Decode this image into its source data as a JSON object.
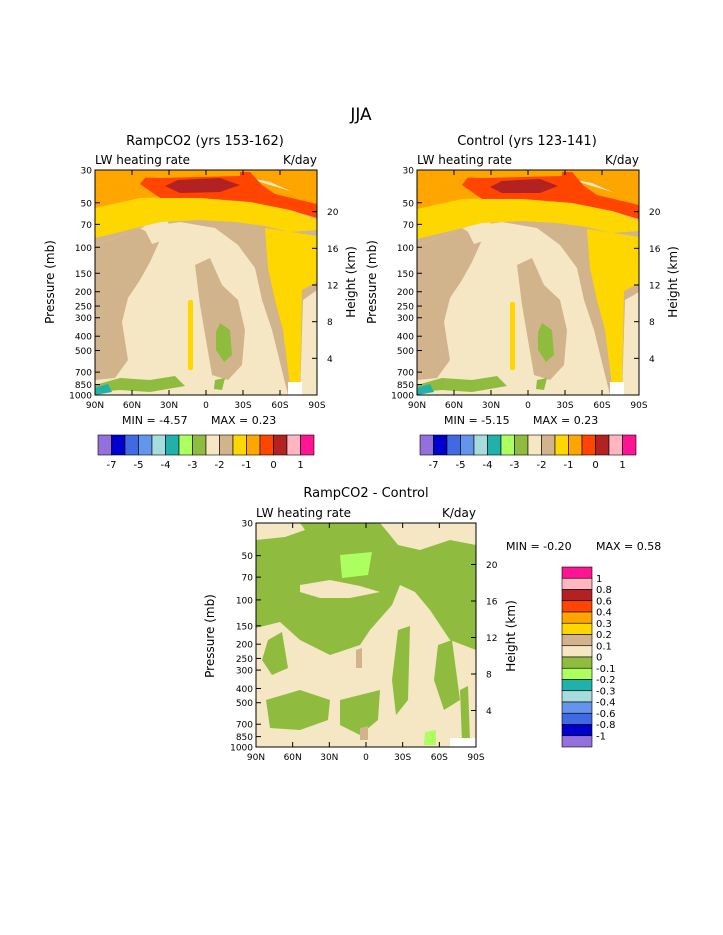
{
  "page_title": "JJA",
  "colors": {
    "top_scale": [
      "#9370DB",
      "#0000CD",
      "#4169E1",
      "#6495ED",
      "#A6DCDC",
      "#20B2AA",
      "#ADFF5F",
      "#8FBC3F",
      "#F5E6C4",
      "#D2B48C",
      "#FFD700",
      "#FFA500",
      "#FF4500",
      "#B22222",
      "#FFB6C1",
      "#FF1493"
    ],
    "diff_scale": [
      "#9370DB",
      "#0000CD",
      "#4169E1",
      "#6495ED",
      "#A6DCDC",
      "#20B2AA",
      "#ADFF5F",
      "#8FBC3F",
      "#F5E6C4",
      "#D2B48C",
      "#FFD700",
      "#FFA500",
      "#FF4500",
      "#B22222",
      "#FFB6C1",
      "#FF1493"
    ]
  },
  "chart_data": [
    {
      "type": "heatmap",
      "title": "RampCO2 (yrs 153-162)",
      "left_label": "LW heating rate",
      "right_label": "K/day",
      "xlabel": "",
      "ylabel": "Pressure (mb)",
      "y2label": "Height (km)",
      "x_ticks": [
        "90N",
        "60N",
        "30N",
        "0",
        "30S",
        "60S",
        "90S"
      ],
      "y_ticks": [
        "30",
        "50",
        "70",
        "100",
        "150",
        "200",
        "250",
        "300",
        "400",
        "500",
        "700",
        "850",
        "1000"
      ],
      "y2_ticks": [
        "20",
        "16",
        "12",
        "8",
        "4"
      ],
      "min_text": "MIN =   -4.57",
      "max_text": "MAX =    0.23",
      "legend_labels": [
        "-7",
        "-5",
        "-4",
        "-3",
        "-2",
        "-1",
        "0",
        "1"
      ]
    },
    {
      "type": "heatmap",
      "title": "Control (yrs 123-141)",
      "left_label": "LW heating rate",
      "right_label": "K/day",
      "xlabel": "",
      "ylabel": "Pressure (mb)",
      "y2label": "Height (km)",
      "x_ticks": [
        "90N",
        "60N",
        "30N",
        "0",
        "30S",
        "60S",
        "90S"
      ],
      "y_ticks": [
        "30",
        "50",
        "70",
        "100",
        "150",
        "200",
        "250",
        "300",
        "400",
        "500",
        "700",
        "850",
        "1000"
      ],
      "y2_ticks": [
        "20",
        "16",
        "12",
        "8",
        "4"
      ],
      "min_text": "MIN =   -5.15",
      "max_text": "MAX =    0.23",
      "legend_labels": [
        "-7",
        "-5",
        "-4",
        "-3",
        "-2",
        "-1",
        "0",
        "1"
      ]
    },
    {
      "type": "heatmap",
      "title": "RampCO2 - Control",
      "left_label": "LW heating rate",
      "right_label": "K/day",
      "xlabel": "",
      "ylabel": "Pressure (mb)",
      "y2label": "Height (km)",
      "x_ticks": [
        "90N",
        "60N",
        "30N",
        "0",
        "30S",
        "60S",
        "90S"
      ],
      "y_ticks": [
        "30",
        "50",
        "70",
        "100",
        "150",
        "200",
        "250",
        "300",
        "400",
        "500",
        "700",
        "850",
        "1000"
      ],
      "y2_ticks": [
        "20",
        "16",
        "12",
        "8",
        "4"
      ],
      "min_text": "MIN =   -0.20",
      "max_text": "MAX =    0.58",
      "legend_labels": [
        "1",
        "0.8",
        "0.6",
        "0.4",
        "0.3",
        "0.2",
        "0.1",
        "0",
        "-0.1",
        "-0.2",
        "-0.3",
        "-0.4",
        "-0.6",
        "-0.8",
        "-1"
      ]
    }
  ]
}
